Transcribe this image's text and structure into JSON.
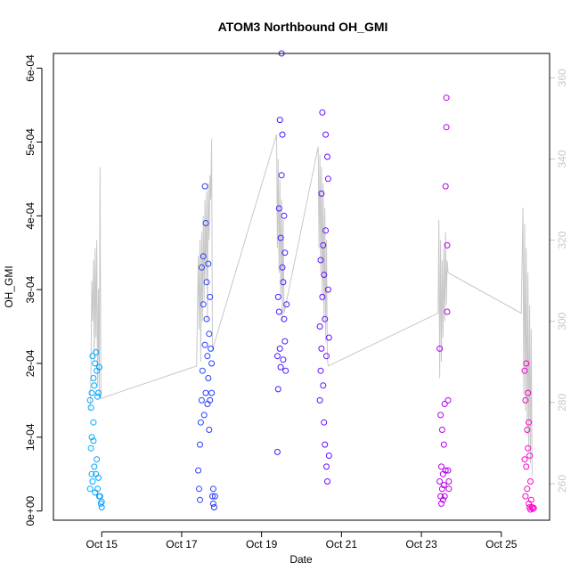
{
  "chart_data": {
    "type": "scatter",
    "title": "ATOM3 Northbound OH_GMI",
    "xlabel": "Date",
    "ylabel": "OH_GMI",
    "xlim": [
      "2017-10-13T19:00",
      "2017-10-26T05:00"
    ],
    "ylim": [
      -1.25e-05,
      0.00062
    ],
    "y_ticks": [
      0,
      0.0001,
      0.0002,
      0.0003,
      0.0004,
      0.0005,
      0.0006
    ],
    "y_tick_labels": [
      "0e+00",
      "1e-04",
      "2e-04",
      "3e-04",
      "4e-04",
      "5e-04",
      "6e-04"
    ],
    "x_ticks": [
      "2017-10-15",
      "2017-10-17",
      "2017-10-19",
      "2017-10-21",
      "2017-10-23",
      "2017-10-25"
    ],
    "x_tick_labels": [
      "Oct 15",
      "Oct 17",
      "Oct 19",
      "Oct 21",
      "Oct 23",
      "Oct 25"
    ],
    "right_axis": {
      "ylim": [
        251,
        366
      ],
      "ticks": [
        260,
        280,
        300,
        320,
        340,
        360
      ],
      "color": "#c8c8c8"
    },
    "grid": false,
    "marker": "open-circle",
    "color_scale": [
      "#00aaff",
      "#3322ff",
      "#8800ff",
      "#ff00cc"
    ],
    "series": [
      {
        "values": [
          [
            "2017-10-14T17:00",
            0.00015
          ],
          [
            "2017-10-14T17:00",
            3e-05
          ],
          [
            "2017-10-14T17:30",
            0.00014
          ],
          [
            "2017-10-14T17:30",
            8.5e-05
          ],
          [
            "2017-10-14T18:00",
            0.00016
          ],
          [
            "2017-10-14T18:00",
            5e-05
          ],
          [
            "2017-10-14T18:30",
            0.00021
          ],
          [
            "2017-10-14T18:30",
            4e-05
          ],
          [
            "2017-10-14T19:00",
            0.00018
          ],
          [
            "2017-10-14T19:00",
            9.5e-05
          ],
          [
            "2017-10-14T19:30",
            0.00017
          ],
          [
            "2017-10-14T19:30",
            6e-05
          ],
          [
            "2017-10-14T20:00",
            0.0002
          ],
          [
            "2017-10-14T20:00",
            2.5e-05
          ],
          [
            "2017-10-14T20:30",
            0.000215
          ],
          [
            "2017-10-14T20:30",
            5e-05
          ],
          [
            "2017-10-14T21:00",
            0.00019
          ],
          [
            "2017-10-14T21:00",
            7e-05
          ],
          [
            "2017-10-14T21:30",
            0.000155
          ],
          [
            "2017-10-14T21:30",
            3e-05
          ],
          [
            "2017-10-14T22:00",
            0.00016
          ],
          [
            "2017-10-14T22:00",
            4.5e-05
          ],
          [
            "2017-10-14T22:30",
            0.000195
          ],
          [
            "2017-10-14T22:30",
            2e-05
          ],
          [
            "2017-10-14T23:00",
            2e-05
          ],
          [
            "2017-10-14T23:30",
            1e-05
          ],
          [
            "2017-10-15T00:00",
            5e-06
          ],
          [
            "2017-10-15T00:00",
            1.25e-05
          ],
          [
            "2017-10-14T18:00",
            0.0001
          ],
          [
            "2017-10-14T19:00",
            0.00012
          ]
        ]
      },
      {
        "values": [
          [
            "2017-10-17T10:00",
            5.5e-05
          ],
          [
            "2017-10-17T10:30",
            3e-05
          ],
          [
            "2017-10-17T11:00",
            1.5e-05
          ],
          [
            "2017-10-17T11:00",
            9e-05
          ],
          [
            "2017-10-17T11:30",
            0.00012
          ],
          [
            "2017-10-17T12:00",
            0.00015
          ],
          [
            "2017-10-17T12:00",
            0.00033
          ],
          [
            "2017-10-17T12:30",
            0.00019
          ],
          [
            "2017-10-17T13:00",
            0.00028
          ],
          [
            "2017-10-17T13:00",
            0.000345
          ],
          [
            "2017-10-17T13:30",
            0.00013
          ],
          [
            "2017-10-17T14:00",
            0.000225
          ],
          [
            "2017-10-17T14:00",
            0.00044
          ],
          [
            "2017-10-17T14:30",
            0.00039
          ],
          [
            "2017-10-17T14:30",
            0.00016
          ],
          [
            "2017-10-17T15:00",
            0.00026
          ],
          [
            "2017-10-17T15:00",
            0.00031
          ],
          [
            "2017-10-17T15:30",
            0.00021
          ],
          [
            "2017-10-17T15:30",
            0.000145
          ],
          [
            "2017-10-17T16:00",
            0.00018
          ],
          [
            "2017-10-17T16:00",
            0.000335
          ],
          [
            "2017-10-17T16:30",
            0.00024
          ],
          [
            "2017-10-17T16:30",
            0.00011
          ],
          [
            "2017-10-17T17:00",
            0.00015
          ],
          [
            "2017-10-17T17:00",
            0.00029
          ],
          [
            "2017-10-17T17:30",
            0.00022
          ],
          [
            "2017-10-17T18:00",
            0.00016
          ],
          [
            "2017-10-17T18:00",
            0.0002
          ],
          [
            "2017-10-17T18:30",
            2e-05
          ],
          [
            "2017-10-17T19:00",
            1e-05
          ],
          [
            "2017-10-17T19:00",
            3e-05
          ],
          [
            "2017-10-17T19:30",
            5e-06
          ],
          [
            "2017-10-17T20:00",
            2e-05
          ]
        ]
      },
      {
        "values": [
          [
            "2017-10-19T09:30",
            8e-05
          ],
          [
            "2017-10-19T09:30",
            0.00021
          ],
          [
            "2017-10-19T10:00",
            0.000165
          ],
          [
            "2017-10-19T10:00",
            0.00029
          ],
          [
            "2017-10-19T10:30",
            0.00027
          ],
          [
            "2017-10-19T10:30",
            0.00041
          ],
          [
            "2017-10-19T11:00",
            0.00022
          ],
          [
            "2017-10-19T11:00",
            0.00053
          ],
          [
            "2017-10-19T11:30",
            0.000195
          ],
          [
            "2017-10-19T11:30",
            0.00037
          ],
          [
            "2017-10-19T12:00",
            0.00062
          ],
          [
            "2017-10-19T12:00",
            0.000455
          ],
          [
            "2017-10-19T12:30",
            0.00051
          ],
          [
            "2017-10-19T12:30",
            0.00033
          ],
          [
            "2017-10-19T13:00",
            0.00031
          ],
          [
            "2017-10-19T13:00",
            0.000205
          ],
          [
            "2017-10-19T13:30",
            0.00026
          ],
          [
            "2017-10-19T13:30",
            0.0004
          ],
          [
            "2017-10-19T14:00",
            0.00023
          ],
          [
            "2017-10-19T14:00",
            0.00035
          ],
          [
            "2017-10-19T14:30",
            0.00019
          ],
          [
            "2017-10-19T15:00",
            0.00028
          ]
        ]
      },
      {
        "values": [
          [
            "2017-10-20T11:00",
            0.00015
          ],
          [
            "2017-10-20T11:00",
            0.00025
          ],
          [
            "2017-10-20T11:30",
            0.00019
          ],
          [
            "2017-10-20T11:30",
            0.00034
          ],
          [
            "2017-10-20T12:00",
            0.00022
          ],
          [
            "2017-10-20T12:00",
            0.00043
          ],
          [
            "2017-10-20T12:30",
            0.00054
          ],
          [
            "2017-10-20T12:30",
            0.00029
          ],
          [
            "2017-10-20T13:00",
            0.00017
          ],
          [
            "2017-10-20T13:00",
            0.00036
          ],
          [
            "2017-10-20T13:30",
            0.00012
          ],
          [
            "2017-10-20T13:30",
            0.00032
          ],
          [
            "2017-10-20T14:00",
            9e-05
          ],
          [
            "2017-10-20T14:00",
            0.00026
          ],
          [
            "2017-10-20T14:30",
            0.00051
          ],
          [
            "2017-10-20T14:30",
            0.00038
          ],
          [
            "2017-10-20T15:00",
            6e-05
          ],
          [
            "2017-10-20T15:00",
            0.00021
          ],
          [
            "2017-10-20T15:30",
            0.00048
          ],
          [
            "2017-10-20T15:30",
            4e-05
          ],
          [
            "2017-10-20T16:00",
            0.0003
          ],
          [
            "2017-10-20T16:00",
            0.00045
          ],
          [
            "2017-10-20T16:30",
            7.5e-05
          ],
          [
            "2017-10-20T16:30",
            0.000235
          ]
        ]
      },
      {
        "values": [
          [
            "2017-10-23T11:00",
            4e-05
          ],
          [
            "2017-10-23T11:00",
            0.00022
          ],
          [
            "2017-10-23T11:30",
            2e-05
          ],
          [
            "2017-10-23T11:30",
            0.00013
          ],
          [
            "2017-10-23T12:00",
            6e-05
          ],
          [
            "2017-10-23T12:00",
            1e-05
          ],
          [
            "2017-10-23T12:30",
            3e-05
          ],
          [
            "2017-10-23T12:30",
            0.00011
          ],
          [
            "2017-10-23T13:00",
            5e-05
          ],
          [
            "2017-10-23T13:00",
            1.5e-05
          ],
          [
            "2017-10-23T13:30",
            3.5e-05
          ],
          [
            "2017-10-23T13:30",
            9e-05
          ],
          [
            "2017-10-23T14:00",
            2e-05
          ],
          [
            "2017-10-23T14:00",
            0.000145
          ],
          [
            "2017-10-23T14:30",
            5.5e-05
          ],
          [
            "2017-10-23T14:30",
            0.00044
          ],
          [
            "2017-10-23T15:00",
            0.00052
          ],
          [
            "2017-10-23T15:00",
            0.00056
          ],
          [
            "2017-10-23T15:30",
            0.00027
          ],
          [
            "2017-10-23T15:30",
            0.00036
          ],
          [
            "2017-10-23T16:00",
            5.5e-05
          ],
          [
            "2017-10-23T16:00",
            0.00015
          ],
          [
            "2017-10-23T16:30",
            4e-05
          ],
          [
            "2017-10-23T16:30",
            3e-05
          ]
        ]
      },
      {
        "values": [
          [
            "2017-10-25T14:00",
            7e-05
          ],
          [
            "2017-10-25T14:00",
            0.00019
          ],
          [
            "2017-10-25T14:30",
            2e-05
          ],
          [
            "2017-10-25T14:30",
            0.00015
          ],
          [
            "2017-10-25T15:00",
            6e-05
          ],
          [
            "2017-10-25T15:00",
            0.0002
          ],
          [
            "2017-10-25T15:30",
            0.00011
          ],
          [
            "2017-10-25T15:30",
            3e-05
          ],
          [
            "2017-10-25T16:00",
            0.00016
          ],
          [
            "2017-10-25T16:00",
            8.5e-05
          ],
          [
            "2017-10-25T16:30",
            0.00012
          ],
          [
            "2017-10-25T16:30",
            1e-05
          ],
          [
            "2017-10-25T17:00",
            7.5e-05
          ],
          [
            "2017-10-25T17:00",
            5e-06
          ],
          [
            "2017-10-25T17:30",
            4e-05
          ],
          [
            "2017-10-25T17:30",
            2e-06
          ],
          [
            "2017-10-25T18:00",
            1.5e-05
          ],
          [
            "2017-10-25T18:30",
            5e-06
          ],
          [
            "2017-10-25T19:00",
            3e-06
          ],
          [
            "2017-10-25T19:30",
            4e-06
          ]
        ]
      }
    ],
    "secondary_line": {
      "axis": "right",
      "color": "#c8c8c8",
      "points": [
        [
          "2017-10-14T17:00",
          278
        ],
        [
          "2017-10-14T17:30",
          286
        ],
        [
          "2017-10-14T18:00",
          310
        ],
        [
          "2017-10-14T18:30",
          300
        ],
        [
          "2017-10-14T19:00",
          315
        ],
        [
          "2017-10-14T19:30",
          290
        ],
        [
          "2017-10-14T20:00",
          318
        ],
        [
          "2017-10-14T20:30",
          296
        ],
        [
          "2017-10-14T21:00",
          320
        ],
        [
          "2017-10-14T21:30",
          284
        ],
        [
          "2017-10-14T22:00",
          308
        ],
        [
          "2017-10-14T22:30",
          281
        ],
        [
          "2017-10-14T23:00",
          338
        ],
        [
          "2017-10-14T23:30",
          281
        ],
        [
          "2017-10-17T09:00",
          289
        ],
        [
          "2017-10-17T10:00",
          316
        ],
        [
          "2017-10-17T10:30",
          298
        ],
        [
          "2017-10-17T11:00",
          320
        ],
        [
          "2017-10-17T11:30",
          290
        ],
        [
          "2017-10-17T12:00",
          322
        ],
        [
          "2017-10-17T12:30",
          300
        ],
        [
          "2017-10-17T13:00",
          326
        ],
        [
          "2017-10-17T13:30",
          305
        ],
        [
          "2017-10-17T14:00",
          330
        ],
        [
          "2017-10-17T14:30",
          310
        ],
        [
          "2017-10-17T15:00",
          332
        ],
        [
          "2017-10-17T15:30",
          300
        ],
        [
          "2017-10-17T16:00",
          334
        ],
        [
          "2017-10-17T16:30",
          320
        ],
        [
          "2017-10-17T17:00",
          336
        ],
        [
          "2017-10-17T17:30",
          330
        ],
        [
          "2017-10-17T18:00",
          345
        ],
        [
          "2017-10-17T18:30",
          293
        ],
        [
          "2017-10-19T09:00",
          346
        ],
        [
          "2017-10-19T09:30",
          318
        ],
        [
          "2017-10-19T10:00",
          340
        ],
        [
          "2017-10-19T10:30",
          312
        ],
        [
          "2017-10-19T11:00",
          335
        ],
        [
          "2017-10-19T11:30",
          306
        ],
        [
          "2017-10-19T12:00",
          330
        ],
        [
          "2017-10-19T12:30",
          300
        ],
        [
          "2017-10-19T13:00",
          325
        ],
        [
          "2017-10-19T13:30",
          302
        ],
        [
          "2017-10-20T10:00",
          343
        ],
        [
          "2017-10-20T10:30",
          318
        ],
        [
          "2017-10-20T11:00",
          341
        ],
        [
          "2017-10-20T11:30",
          312
        ],
        [
          "2017-10-20T12:00",
          338
        ],
        [
          "2017-10-20T12:30",
          306
        ],
        [
          "2017-10-20T13:00",
          334
        ],
        [
          "2017-10-20T13:30",
          300
        ],
        [
          "2017-10-20T14:00",
          328
        ],
        [
          "2017-10-20T14:30",
          295
        ],
        [
          "2017-10-20T15:00",
          320
        ],
        [
          "2017-10-20T15:30",
          291
        ],
        [
          "2017-10-20T16:00",
          289
        ],
        [
          "2017-10-23T10:00",
          302
        ],
        [
          "2017-10-23T10:30",
          325
        ],
        [
          "2017-10-23T11:00",
          286
        ],
        [
          "2017-10-23T11:30",
          320
        ],
        [
          "2017-10-23T12:00",
          290
        ],
        [
          "2017-10-23T12:30",
          315
        ],
        [
          "2017-10-23T13:00",
          296
        ],
        [
          "2017-10-23T13:30",
          318
        ],
        [
          "2017-10-23T14:00",
          300
        ],
        [
          "2017-10-23T14:30",
          322
        ],
        [
          "2017-10-23T15:00",
          304
        ],
        [
          "2017-10-23T15:30",
          315
        ],
        [
          "2017-10-23T16:00",
          312
        ],
        [
          "2017-10-25T12:00",
          302
        ],
        [
          "2017-10-25T13:00",
          328
        ],
        [
          "2017-10-25T13:30",
          282
        ],
        [
          "2017-10-25T14:00",
          324
        ],
        [
          "2017-10-25T14:30",
          278
        ],
        [
          "2017-10-25T15:00",
          318
        ],
        [
          "2017-10-25T15:30",
          272
        ],
        [
          "2017-10-25T16:00",
          312
        ],
        [
          "2017-10-25T16:30",
          268
        ],
        [
          "2017-10-25T17:00",
          304
        ],
        [
          "2017-10-25T17:30",
          265
        ],
        [
          "2017-10-25T18:00",
          298
        ],
        [
          "2017-10-25T18:30",
          262
        ]
      ]
    }
  }
}
